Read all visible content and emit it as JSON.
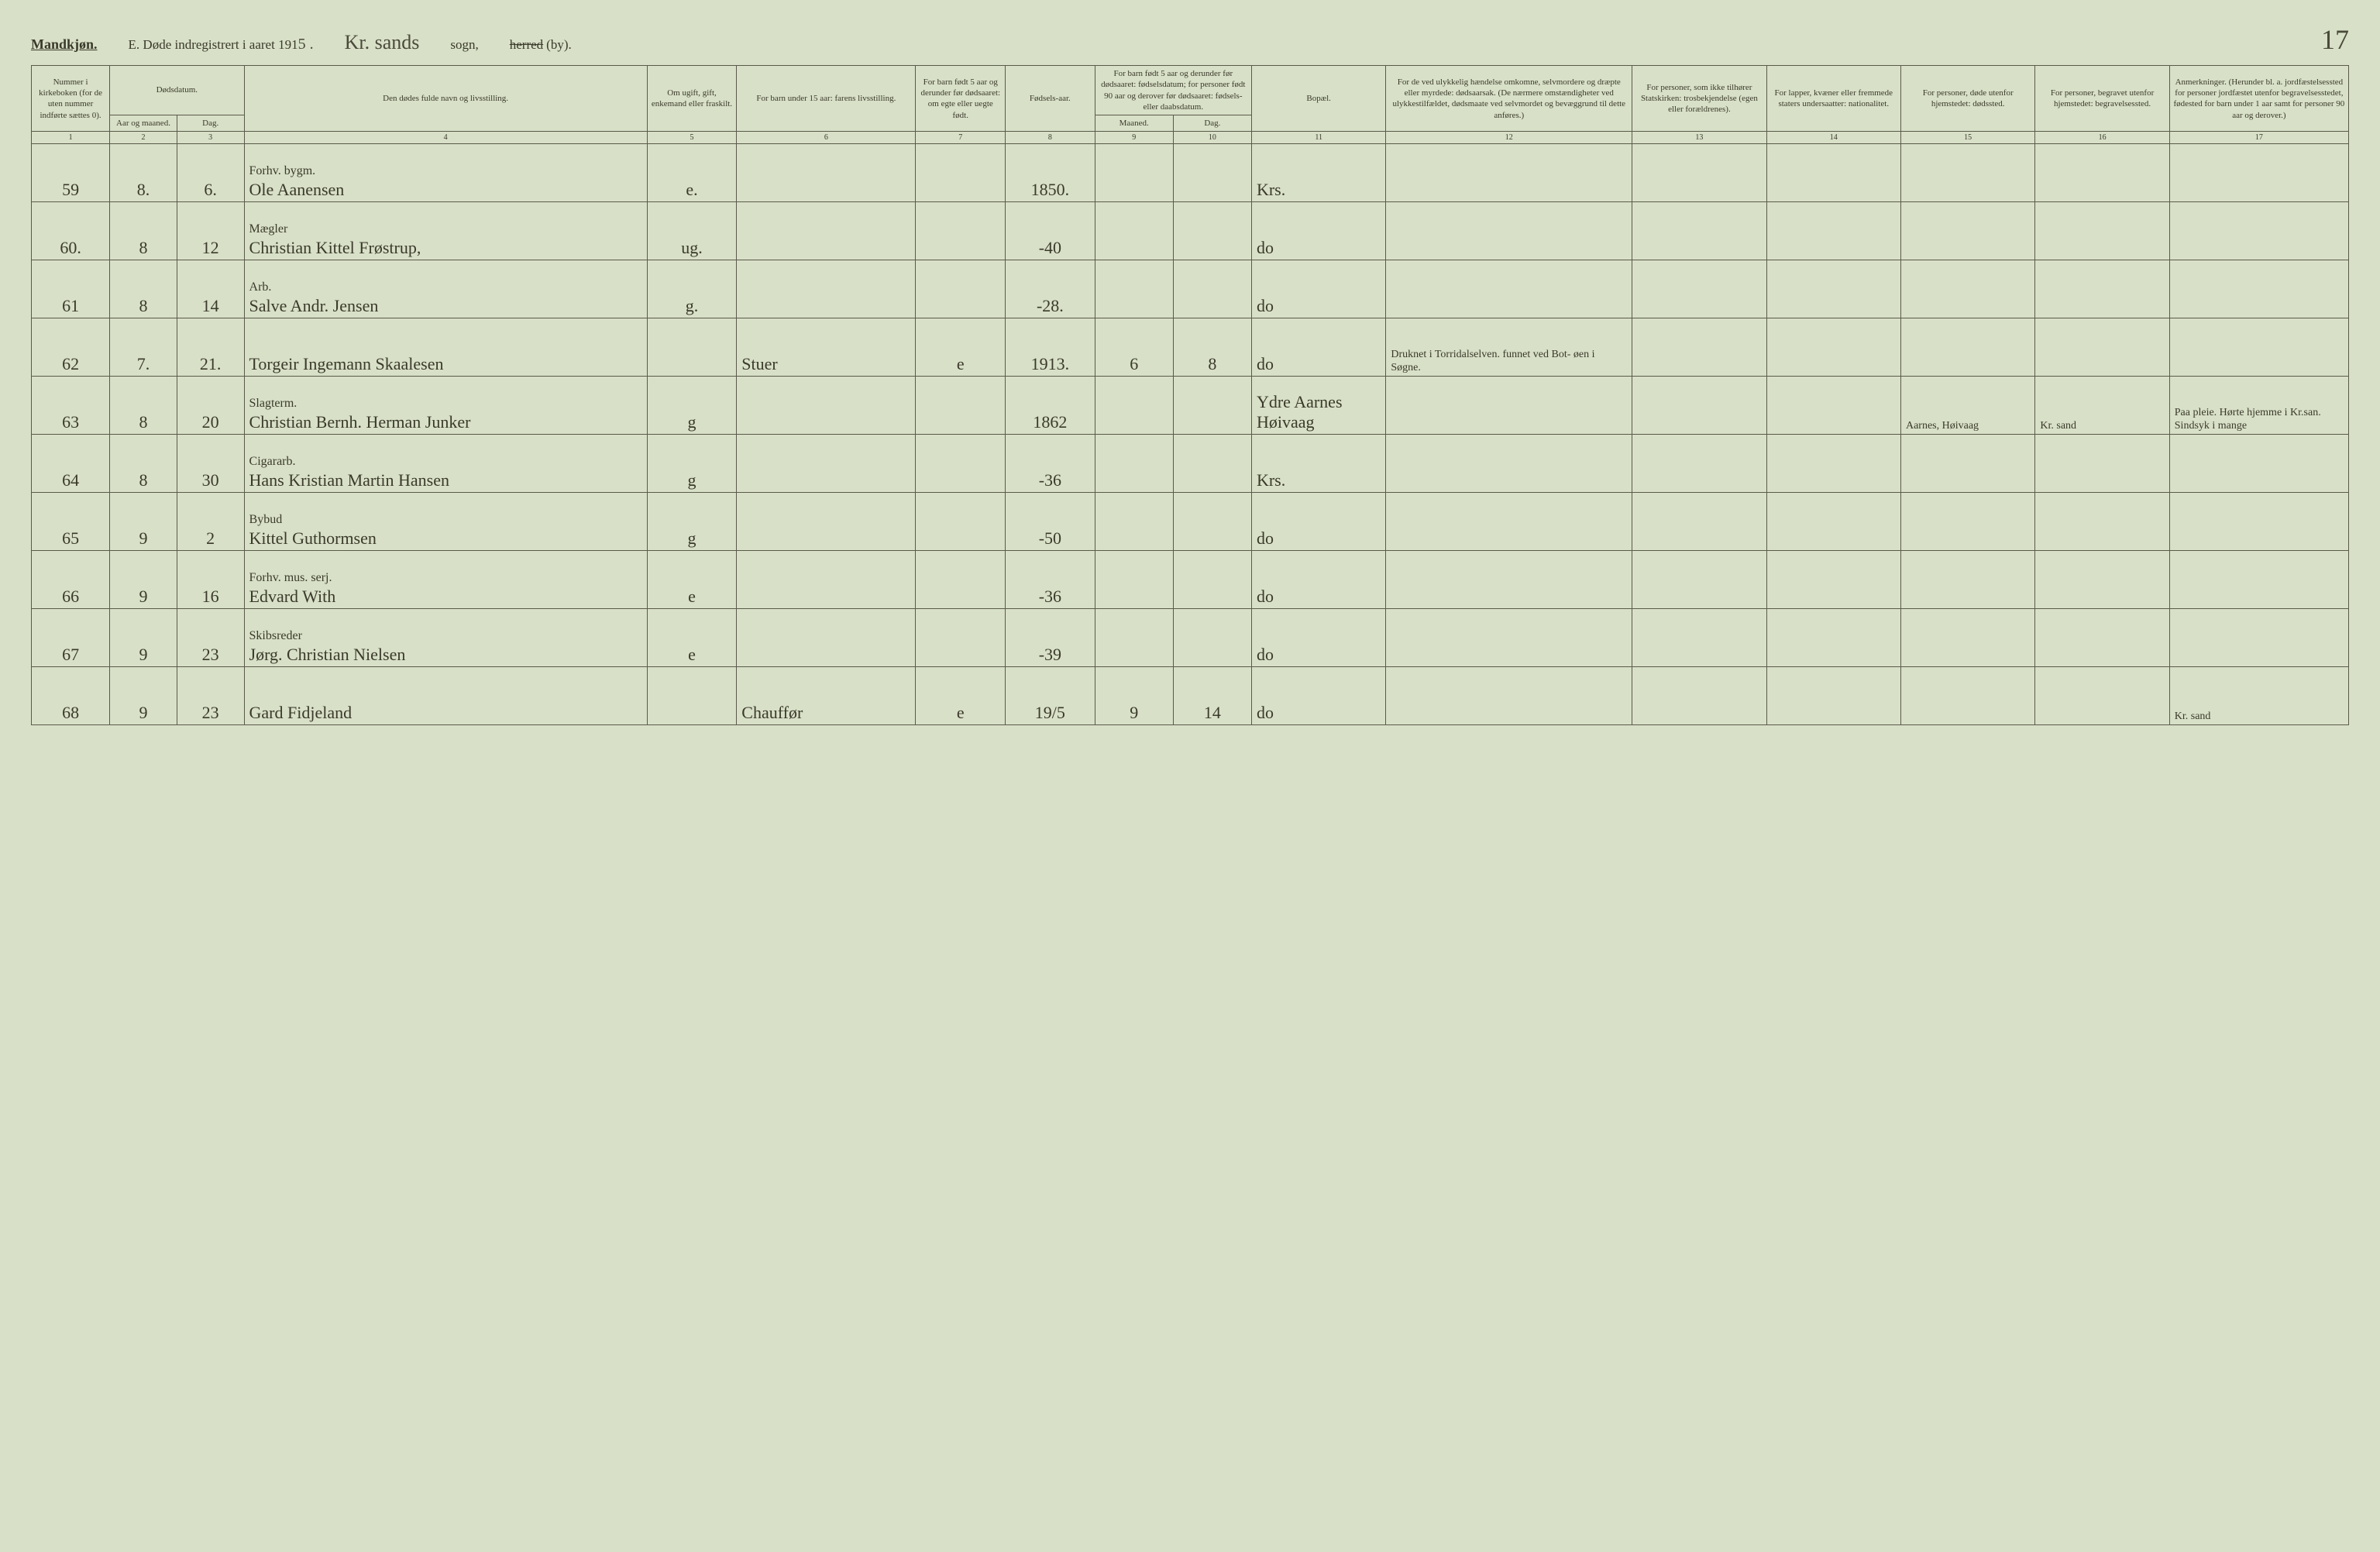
{
  "header": {
    "gender": "Mandkjøn.",
    "title_prefix": "E.  Døde indregistrert i aaret 191",
    "year_suffix": "5 .",
    "parish": "Kr. sands",
    "sogn_label": "sogn,",
    "herred_strike": "herred",
    "by_label": "(by).",
    "page_number": "17"
  },
  "columns": {
    "c1": "Nummer i kirkeboken (for de uten nummer indførte sættes 0).",
    "c2_group": "Dødsdatum.",
    "c2a": "Aar og maaned.",
    "c2b": "Dag.",
    "c4": "Den dødes fulde navn og livsstilling.",
    "c5": "Om ugift, gift, enkemand eller fraskilt.",
    "c6": "For barn under 15 aar: farens livsstilling.",
    "c7": "For barn født 5 aar og derunder før dødsaaret: om egte eller uegte født.",
    "c8": "Fødsels-aar.",
    "c9_group": "For barn født 5 aar og derunder før dødsaaret: fødselsdatum; for personer født 90 aar og derover før dødsaaret: fødsels- eller daabsdatum.",
    "c9a": "Maaned.",
    "c9b": "Dag.",
    "c11": "Bopæl.",
    "c12": "For de ved ulykkelig hændelse omkomne, selvmordere og dræpte eller myrdede: dødsaarsak. (De nærmere omstændigheter ved ulykkestilfældet, dødsmaate ved selvmordet og bevæggrund til dette anføres.)",
    "c13": "For personer, som ikke tilhører Statskirken: trosbekjendelse (egen eller forældrenes).",
    "c14": "For lapper, kvæner eller fremmede staters undersaatter: nationalitet.",
    "c15": "For personer, døde utenfor hjemstedet: dødssted.",
    "c16": "For personer, begravet utenfor hjemstedet: begravelsessted.",
    "c17": "Anmerkninger. (Herunder bl. a. jordfæstelsessted for personer jordfæstet utenfor begravelsesstedet, fødested for barn under 1 aar samt for personer 90 aar og derover.)"
  },
  "colnums": [
    "1",
    "2",
    "3",
    "4",
    "5",
    "6",
    "7",
    "8",
    "9",
    "10",
    "11",
    "12",
    "13",
    "14",
    "15",
    "16",
    "17"
  ],
  "rows": [
    {
      "n": "59",
      "m": "8.",
      "d": "6.",
      "occ": "Forhv. bygm.",
      "name": "Ole Aanensen",
      "stat": "e.",
      "far": "",
      "egte": "",
      "yr": "1850.",
      "mm": "",
      "dd": "",
      "bo": "Krs.",
      "c12": "",
      "c13": "",
      "c14": "",
      "c15": "",
      "c16": "",
      "c17": ""
    },
    {
      "n": "60.",
      "m": "8",
      "d": "12",
      "occ": "Mægler",
      "name": "Christian Kittel Frøstrup,",
      "stat": "ug.",
      "far": "",
      "egte": "",
      "yr": "-40",
      "mm": "",
      "dd": "",
      "bo": "do",
      "c12": "",
      "c13": "",
      "c14": "",
      "c15": "",
      "c16": "",
      "c17": ""
    },
    {
      "n": "61",
      "m": "8",
      "d": "14",
      "occ": "Arb.",
      "name": "Salve Andr. Jensen",
      "stat": "g.",
      "far": "",
      "egte": "",
      "yr": "-28.",
      "mm": "",
      "dd": "",
      "bo": "do",
      "c12": "",
      "c13": "",
      "c14": "",
      "c15": "",
      "c16": "",
      "c17": ""
    },
    {
      "n": "62",
      "m": "7.",
      "d": "21.",
      "occ": "",
      "name": "Torgeir Ingemann Skaalesen",
      "stat": "",
      "far": "Stuer",
      "egte": "e",
      "yr": "1913.",
      "mm": "6",
      "dd": "8",
      "bo": "do",
      "c12": "Druknet i Torridalselven. funnet ved Bot- øen i Søgne.",
      "c13": "",
      "c14": "",
      "c15": "",
      "c16": "",
      "c17": ""
    },
    {
      "n": "63",
      "m": "8",
      "d": "20",
      "occ": "Slagterm.",
      "name": "Christian Bernh. Herman Junker",
      "stat": "g",
      "far": "",
      "egte": "",
      "yr": "1862",
      "mm": "",
      "dd": "",
      "bo": "Ydre Aarnes Høivaag",
      "c12": "",
      "c13": "",
      "c14": "",
      "c15": "Aarnes, Høivaag",
      "c16": "Kr. sand",
      "c17": "Paa pleie. Hørte hjemme i Kr.san. Sindsyk i mange"
    },
    {
      "n": "64",
      "m": "8",
      "d": "30",
      "occ": "Cigararb.",
      "name": "Hans Kristian Martin Hansen",
      "stat": "g",
      "far": "",
      "egte": "",
      "yr": "-36",
      "mm": "",
      "dd": "",
      "bo": "Krs.",
      "c12": "",
      "c13": "",
      "c14": "",
      "c15": "",
      "c16": "",
      "c17": ""
    },
    {
      "n": "65",
      "m": "9",
      "d": "2",
      "occ": "Bybud",
      "name": "Kittel Guthormsen",
      "stat": "g",
      "far": "",
      "egte": "",
      "yr": "-50",
      "mm": "",
      "dd": "",
      "bo": "do",
      "c12": "",
      "c13": "",
      "c14": "",
      "c15": "",
      "c16": "",
      "c17": ""
    },
    {
      "n": "66",
      "m": "9",
      "d": "16",
      "occ": "Forhv. mus. serj.",
      "name": "Edvard With",
      "stat": "e",
      "far": "",
      "egte": "",
      "yr": "-36",
      "mm": "",
      "dd": "",
      "bo": "do",
      "c12": "",
      "c13": "",
      "c14": "",
      "c15": "",
      "c16": "",
      "c17": ""
    },
    {
      "n": "67",
      "m": "9",
      "d": "23",
      "occ": "Skibsreder",
      "name": "Jørg. Christian Nielsen",
      "stat": "e",
      "far": "",
      "egte": "",
      "yr": "-39",
      "mm": "",
      "dd": "",
      "bo": "do",
      "c12": "",
      "c13": "",
      "c14": "",
      "c15": "",
      "c16": "",
      "c17": ""
    },
    {
      "n": "68",
      "m": "9",
      "d": "23",
      "occ": "",
      "name": "Gard Fidjeland",
      "stat": "",
      "far": "Chauffør",
      "egte": "e",
      "yr": "19/5",
      "mm": "9",
      "dd": "14",
      "bo": "do",
      "c12": "",
      "c13": "",
      "c14": "",
      "c15": "",
      "c16": "",
      "c17": "Kr. sand"
    }
  ],
  "style": {
    "background_color": "#d8e0c8",
    "border_color": "#5a5a4a",
    "text_color": "#3a3a2a",
    "header_fontsize": 11,
    "body_fontsize": 22,
    "handwritten_font": "Brush Script MT",
    "col_widths_pct": [
      3.5,
      3,
      3,
      18,
      4,
      8,
      4,
      4,
      3.5,
      3.5,
      6,
      11,
      6,
      6,
      6,
      6,
      8
    ]
  }
}
